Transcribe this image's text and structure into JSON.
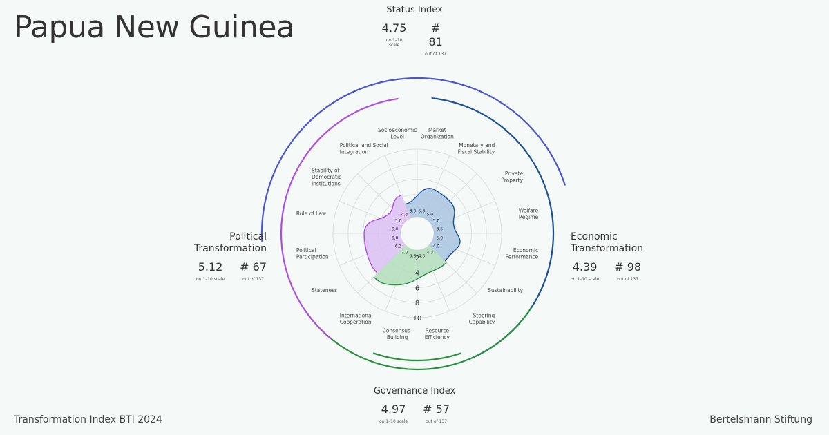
{
  "country": "Papua New Guinea",
  "footer": {
    "left": "Transformation Index BTI 2024",
    "right": "Bertelsmann Stiftung"
  },
  "status_index": {
    "title": "Status Index",
    "score": "4.75",
    "score_note": "on 1–10 scale",
    "rank": "# 81",
    "rank_note": "out of 137"
  },
  "governance_index": {
    "title": "Governance Index",
    "score": "4.97",
    "score_note": "on 1–10 scale",
    "rank": "# 57",
    "rank_note": "out of 137"
  },
  "political": {
    "title_line1": "Political",
    "title_line2": "Transformation",
    "score": "5.12",
    "score_note": "on 1–10 scale",
    "rank": "# 67",
    "rank_note": "out of 137"
  },
  "economic": {
    "title_line1": "Economic",
    "title_line2": "Transformation",
    "score": "4.39",
    "score_note": "on 1–10 scale",
    "rank": "# 98",
    "rank_note": "out of 137"
  },
  "colors": {
    "political": "#b04de0",
    "political_fill": "#dcbff5",
    "economic": "#1a4f99",
    "economic_fill": "#a9c4e2",
    "governance": "#2a8f3c",
    "governance_fill": "#b3ddbb",
    "status_arc": "#4a56d0",
    "grid": "#dcdfe0",
    "background": "#f5f9f8"
  },
  "chart_data": {
    "type": "radar",
    "scale": [
      1,
      10
    ],
    "ring_labels": [
      "2",
      "4",
      "6",
      "8",
      "10"
    ],
    "axes": [
      {
        "label": [
          "Market",
          "Organization"
        ],
        "value": 5.3,
        "group": "economic"
      },
      {
        "label": [
          "Monetary and",
          "Fiscal Stability"
        ],
        "value": 5.0,
        "group": "economic"
      },
      {
        "label": [
          "Private",
          "Property"
        ],
        "value": 5.0,
        "group": "economic"
      },
      {
        "label": [
          "Welfare",
          "Regime"
        ],
        "value": 3.5,
        "group": "economic"
      },
      {
        "label": [
          "Economic",
          "Performance"
        ],
        "value": 5.0,
        "group": "economic"
      },
      {
        "label": [
          "Sustainability"
        ],
        "value": 4.0,
        "group": "economic"
      },
      {
        "label": [
          "Steering",
          "Capability"
        ],
        "value": 4.3,
        "group": "governance"
      },
      {
        "label": [
          "Resource",
          "Efficiency"
        ],
        "value": 4.3,
        "group": "governance"
      },
      {
        "label": [
          "Consensus-",
          "Building"
        ],
        "value": 5.8,
        "group": "governance"
      },
      {
        "label": [
          "International",
          "Cooperation"
        ],
        "value": 7.0,
        "group": "governance"
      },
      {
        "label": [
          "Stateness"
        ],
        "value": 6.3,
        "group": "political"
      },
      {
        "label": [
          "Political",
          "Participation"
        ],
        "value": 6.0,
        "group": "political"
      },
      {
        "label": [
          "Rule of Law"
        ],
        "value": 6.0,
        "group": "political"
      },
      {
        "label": [
          "Stability of",
          "Democratic",
          "Institutions"
        ],
        "value": 3.0,
        "group": "political"
      },
      {
        "label": [
          "Political and Social",
          "Integration"
        ],
        "value": 4.3,
        "group": "political"
      },
      {
        "label": [
          "Socioeconomic",
          "Level"
        ],
        "value": 3.0,
        "group": "economic"
      }
    ]
  }
}
